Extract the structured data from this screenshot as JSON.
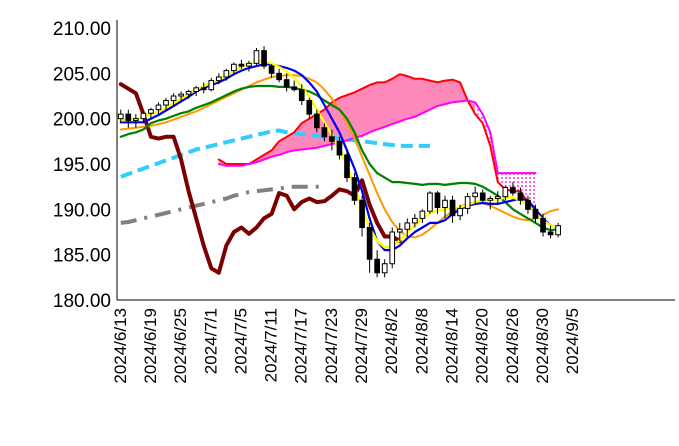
{
  "chart_data": {
    "type": "line",
    "title": "",
    "xlabel": "",
    "ylabel": "",
    "ylim": [
      180,
      210
    ],
    "y_ticks": [
      "180.00",
      "185.00",
      "190.00",
      "195.00",
      "200.00",
      "205.00",
      "210.00"
    ],
    "y_tick_values": [
      180,
      185,
      190,
      195,
      200,
      205,
      210
    ],
    "x_ticks": [
      "2024/6/13",
      "2024/6/19",
      "2024/6/25",
      "2024/7/1",
      "2024/7/5",
      "2024/7/11",
      "2024/7/17",
      "2024/7/23",
      "2024/7/29",
      "2024/8/2",
      "2024/8/8",
      "2024/8/14",
      "2024/8/20",
      "2024/8/26",
      "2024/8/30",
      "2024/9/5"
    ],
    "x_tick_index": [
      0,
      4,
      8,
      12,
      16,
      20,
      24,
      28,
      32,
      36,
      40,
      44,
      48,
      52,
      56,
      60
    ],
    "n_slots": 74,
    "grid": false,
    "candles": [
      [
        200.0,
        201.0,
        199.5,
        200.5
      ],
      [
        200.5,
        201.0,
        199.0,
        199.8
      ],
      [
        199.8,
        200.5,
        199.0,
        200.0
      ],
      [
        200.0,
        200.8,
        199.5,
        200.6
      ],
      [
        200.6,
        201.2,
        200.0,
        201.0
      ],
      [
        201.0,
        201.8,
        200.5,
        201.5
      ],
      [
        201.5,
        202.3,
        201.0,
        202.0
      ],
      [
        202.0,
        202.8,
        201.5,
        202.5
      ],
      [
        202.5,
        203.0,
        202.0,
        202.7
      ],
      [
        202.7,
        203.2,
        202.2,
        203.0
      ],
      [
        203.0,
        203.6,
        202.5,
        203.4
      ],
      [
        203.4,
        204.0,
        202.8,
        203.2
      ],
      [
        203.2,
        204.5,
        203.0,
        204.2
      ],
      [
        204.2,
        205.0,
        203.8,
        204.6
      ],
      [
        204.6,
        205.5,
        204.2,
        205.3
      ],
      [
        205.3,
        206.2,
        205.0,
        206.0
      ],
      [
        206.0,
        206.5,
        205.5,
        205.8
      ],
      [
        205.8,
        206.4,
        205.2,
        206.1
      ],
      [
        206.1,
        207.8,
        205.8,
        207.5
      ],
      [
        207.5,
        208.0,
        205.5,
        205.8
      ],
      [
        205.8,
        206.0,
        204.5,
        205.0
      ],
      [
        205.0,
        205.5,
        204.0,
        204.3
      ],
      [
        204.3,
        205.0,
        203.0,
        203.5
      ],
      [
        203.5,
        204.2,
        203.0,
        203.2
      ],
      [
        203.2,
        203.8,
        201.5,
        202.0
      ],
      [
        202.0,
        202.3,
        200.0,
        200.5
      ],
      [
        200.5,
        201.0,
        198.5,
        199.0
      ],
      [
        199.0,
        199.5,
        197.5,
        198.0
      ],
      [
        198.0,
        198.8,
        196.5,
        197.5
      ],
      [
        197.5,
        198.0,
        195.5,
        196.0
      ],
      [
        196.0,
        196.5,
        193.0,
        193.5
      ],
      [
        193.5,
        194.0,
        190.5,
        191.0
      ],
      [
        191.0,
        191.5,
        187.0,
        188.0
      ],
      [
        188.0,
        188.5,
        183.0,
        184.5
      ],
      [
        184.5,
        185.5,
        182.5,
        183.0
      ],
      [
        183.0,
        184.5,
        182.5,
        184.0
      ],
      [
        184.0,
        188.0,
        183.5,
        187.5
      ],
      [
        187.5,
        188.5,
        186.5,
        187.8
      ],
      [
        187.8,
        189.0,
        187.0,
        188.5
      ],
      [
        188.5,
        189.5,
        188.0,
        189.0
      ],
      [
        189.0,
        190.0,
        188.5,
        189.8
      ],
      [
        189.8,
        192.0,
        189.5,
        191.8
      ],
      [
        191.8,
        192.0,
        189.5,
        190.2
      ],
      [
        190.2,
        191.5,
        189.0,
        191.0
      ],
      [
        191.0,
        191.5,
        188.5,
        189.3
      ],
      [
        189.3,
        190.5,
        188.8,
        190.1
      ],
      [
        190.1,
        191.8,
        189.5,
        191.4
      ],
      [
        191.4,
        192.5,
        190.5,
        191.8
      ],
      [
        191.8,
        192.2,
        190.8,
        191.0
      ],
      [
        191.0,
        191.5,
        190.0,
        191.2
      ],
      [
        191.2,
        192.0,
        190.5,
        191.4
      ],
      [
        191.4,
        192.6,
        191.0,
        192.4
      ],
      [
        192.4,
        193.0,
        191.5,
        191.8
      ],
      [
        191.8,
        192.4,
        190.5,
        191.0
      ],
      [
        191.0,
        191.5,
        189.5,
        190.0
      ],
      [
        190.0,
        190.5,
        188.5,
        189.0
      ],
      [
        189.0,
        189.5,
        187.0,
        187.5
      ],
      [
        187.5,
        188.2,
        186.8,
        187.2
      ],
      [
        187.2,
        188.5,
        186.9,
        188.2
      ]
    ],
    "series": [
      {
        "color": "#0000ee",
        "style": "solid",
        "width": 2.2,
        "start": 0,
        "values": [
          199.6,
          199.6,
          199.6,
          199.6,
          200.0,
          200.4,
          200.9,
          201.4,
          201.9,
          202.4,
          203.0,
          203.4,
          203.7,
          204.0,
          204.4,
          204.9,
          205.3,
          205.6,
          205.8,
          206.0,
          206.0,
          205.8,
          205.6,
          205.3,
          204.8,
          204.0,
          203.0,
          201.5,
          200.0,
          198.5,
          196.5,
          194.5,
          192.0,
          189.0,
          186.5,
          185.5,
          185.5,
          186.0,
          186.8,
          187.5,
          188.0,
          188.5,
          188.5,
          188.8,
          189.5,
          190.0,
          190.4,
          190.6,
          190.7,
          190.6,
          190.6,
          190.8,
          191.0,
          191.2,
          191.0,
          190.0,
          189.0,
          188.2,
          188.0
        ]
      },
      {
        "color": "#008000",
        "style": "solid",
        "width": 2.2,
        "start": 0,
        "values": [
          198.0,
          198.3,
          198.5,
          198.8,
          199.5,
          199.8,
          200.0,
          200.3,
          200.6,
          200.8,
          201.2,
          201.5,
          201.8,
          202.2,
          202.6,
          203.0,
          203.3,
          203.5,
          203.6,
          203.6,
          203.6,
          203.5,
          203.5,
          203.4,
          203.2,
          203.0,
          202.6,
          202.0,
          201.5,
          201.0,
          200.0,
          198.5,
          196.5,
          195.0,
          194.0,
          193.5,
          193.0,
          193.0,
          192.9,
          192.8,
          192.7,
          192.8,
          192.8,
          192.7,
          192.8,
          192.9,
          192.9,
          192.8,
          192.5,
          192.0,
          191.5,
          190.8,
          190.0,
          189.5,
          189.0,
          188.5,
          188.0,
          187.7,
          187.8
        ]
      },
      {
        "color": "#ffff00",
        "style": "solid",
        "width": 2.4,
        "start": 0,
        "values": [
          199.8,
          199.9,
          200.0,
          200.2,
          200.5,
          200.8,
          201.2,
          201.7,
          202.2,
          202.7,
          203.2,
          203.6,
          203.9,
          204.3,
          204.8,
          205.3,
          205.7,
          206.0,
          206.3,
          206.3,
          206.1,
          205.7,
          205.2,
          204.5,
          203.6,
          202.4,
          201.0,
          199.6,
          198.2,
          196.6,
          194.8,
          192.6,
          190.1,
          188.0,
          186.5,
          185.8,
          185.9,
          186.6,
          187.5,
          188.3,
          189.0,
          189.6,
          189.9,
          190.0,
          190.1,
          190.2,
          190.5,
          190.8,
          191.0,
          191.0,
          191.1,
          191.3,
          191.3,
          191.0,
          190.5,
          189.6,
          188.8,
          188.2,
          188.0
        ]
      },
      {
        "color": "#ff9900",
        "style": "solid",
        "width": 2.0,
        "start": 0,
        "values": [
          198.8,
          198.9,
          199.0,
          199.1,
          199.2,
          199.4,
          199.6,
          199.9,
          200.2,
          200.5,
          200.8,
          201.2,
          201.6,
          202.0,
          202.4,
          202.8,
          203.2,
          203.6,
          204.0,
          204.3,
          204.6,
          204.7,
          204.8,
          204.8,
          204.7,
          204.4,
          204.0,
          203.2,
          202.2,
          201.0,
          199.5,
          197.8,
          195.8,
          193.8,
          191.8,
          190.0,
          188.6,
          187.6,
          187.0,
          186.9,
          187.2,
          187.8,
          188.5,
          189.2,
          189.8,
          190.3,
          190.6,
          190.8,
          190.7,
          190.4,
          190.0,
          189.6,
          189.2,
          188.9,
          188.8,
          189.0,
          189.4,
          189.8,
          190.0
        ]
      },
      {
        "color": "#7b0000",
        "style": "solid",
        "width": 4.0,
        "start": 0,
        "values": [
          203.8,
          203.3,
          202.8,
          200.5,
          198.0,
          197.8,
          198.0,
          198.0,
          195.5,
          192.0,
          189.0,
          186.0,
          183.5,
          183.0,
          186.0,
          187.5,
          188.0,
          187.3,
          188.0,
          189.0,
          189.5,
          191.8,
          191.5,
          190.0,
          190.8,
          191.2,
          190.8,
          190.9,
          191.5,
          192.2,
          192.0,
          191.5,
          193.2,
          190.5,
          188.5,
          187.0,
          187.0,
          186.5
        ]
      },
      {
        "color": "#ff0000",
        "style": "solid",
        "width": 2.0,
        "start": 13,
        "values": [
          195.5,
          195.0,
          195.0,
          195.0,
          195.0,
          195.5,
          196.0,
          196.5,
          197.5,
          198.0,
          198.5,
          199.5,
          200.0,
          200.5,
          201.0,
          201.8,
          202.3,
          202.6,
          202.9,
          203.3,
          203.7,
          204.0,
          204.0,
          204.4,
          204.9,
          204.7,
          204.4,
          204.4,
          204.2,
          204.0,
          204.2,
          204.3,
          204.0,
          202.0,
          200.5,
          199.5,
          197.0,
          193.0,
          192.2,
          192.0,
          192.0,
          190.7,
          189.8
        ]
      },
      {
        "color": "#ff00ff",
        "style": "solid",
        "width": 2.0,
        "start": 13,
        "values": [
          195.0,
          194.8,
          194.8,
          194.8,
          195.0,
          195.2,
          195.5,
          195.8,
          196.0,
          196.3,
          196.5,
          196.6,
          196.7,
          196.8,
          197.0,
          197.2,
          197.4,
          197.6,
          197.9,
          198.1,
          198.5,
          198.8,
          199.1,
          199.4,
          199.7,
          200.0,
          200.2,
          200.6,
          201.0,
          201.4,
          201.6,
          201.8,
          201.9,
          202.0,
          201.8,
          200.5,
          198.5,
          194.0,
          194.0,
          194.0,
          194.0,
          194.0,
          194.0
        ]
      },
      {
        "color": "#33ccff",
        "style": "dashed",
        "width": 4.0,
        "start": 0,
        "values": [
          193.6,
          193.9,
          194.2,
          194.5,
          194.8,
          195.1,
          195.4,
          195.7,
          196.0,
          196.3,
          196.6,
          196.8,
          197.0,
          197.2,
          197.4,
          197.6,
          197.8,
          198.0,
          198.2,
          198.4,
          198.6,
          198.7,
          198.5,
          198.4,
          198.3,
          198.2,
          198.1,
          198.0,
          197.9,
          197.8,
          197.7,
          197.6,
          197.5,
          197.4,
          197.3,
          197.2,
          197.1,
          197.0,
          197.0,
          197.0,
          197.0,
          197.0
        ]
      },
      {
        "color": "#808080",
        "style": "dashdot",
        "width": 4.0,
        "start": 0,
        "values": [
          188.5,
          188.6,
          188.8,
          189.0,
          189.2,
          189.4,
          189.6,
          189.8,
          190.0,
          190.2,
          190.4,
          190.6,
          190.8,
          191.0,
          191.2,
          191.5,
          191.7,
          191.9,
          192.0,
          192.1,
          192.2,
          192.3,
          192.4,
          192.5,
          192.5,
          192.5,
          192.5,
          192.5
        ]
      }
    ],
    "cloud": {
      "start": 13,
      "fill_pink": "#ff88bb",
      "fill_dots": "#ff00cc"
    }
  }
}
